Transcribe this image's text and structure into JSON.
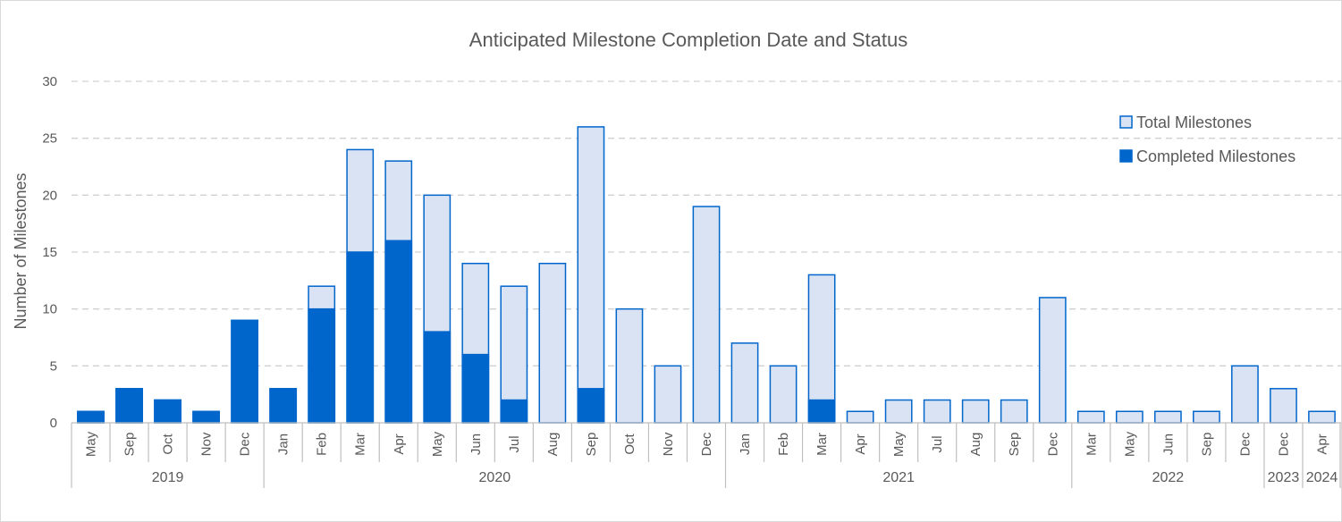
{
  "chart_data": {
    "type": "bar",
    "title": "Anticipated Milestone Completion Date and Status",
    "ylabel": "Number of Milestones",
    "ylim": [
      0,
      30
    ],
    "yticks": [
      0,
      5,
      10,
      15,
      20,
      25,
      30
    ],
    "grid": true,
    "legend_position": "top-right",
    "colors": {
      "total_fill": "#dae3f3",
      "total_border": "#0066cc",
      "completed_fill": "#0066cc",
      "grid": "#d0d0d0",
      "axis": "#bfbfbf"
    },
    "groups": [
      {
        "year": "2019",
        "months": [
          "May",
          "Sep",
          "Oct",
          "Nov",
          "Dec"
        ]
      },
      {
        "year": "2020",
        "months": [
          "Jan",
          "Feb",
          "Mar",
          "Apr",
          "May",
          "Jun",
          "Jul",
          "Aug",
          "Sep",
          "Oct",
          "Nov",
          "Dec"
        ]
      },
      {
        "year": "2021",
        "months": [
          "Jan",
          "Feb",
          "Mar",
          "Apr",
          "May",
          "Jul",
          "Aug",
          "Sep",
          "Dec"
        ]
      },
      {
        "year": "2022",
        "months": [
          "Mar",
          "May",
          "Jun",
          "Sep",
          "Dec"
        ]
      },
      {
        "year": "2023",
        "months": [
          "Dec"
        ]
      },
      {
        "year": "2024",
        "months": [
          "Apr"
        ]
      }
    ],
    "series": [
      {
        "name": "Total Milestones",
        "values": [
          1,
          3,
          2,
          1,
          9,
          3,
          12,
          24,
          23,
          20,
          14,
          12,
          14,
          26,
          10,
          5,
          19,
          7,
          5,
          13,
          1,
          2,
          2,
          2,
          2,
          11,
          1,
          1,
          1,
          1,
          5,
          3,
          1
        ]
      },
      {
        "name": "Completed Milestones",
        "values": [
          1,
          3,
          2,
          1,
          9,
          3,
          10,
          15,
          16,
          8,
          6,
          2,
          0,
          3,
          0,
          0,
          0,
          0,
          0,
          2,
          0,
          0,
          0,
          0,
          0,
          0,
          0,
          0,
          0,
          0,
          0,
          0,
          0
        ]
      }
    ]
  }
}
